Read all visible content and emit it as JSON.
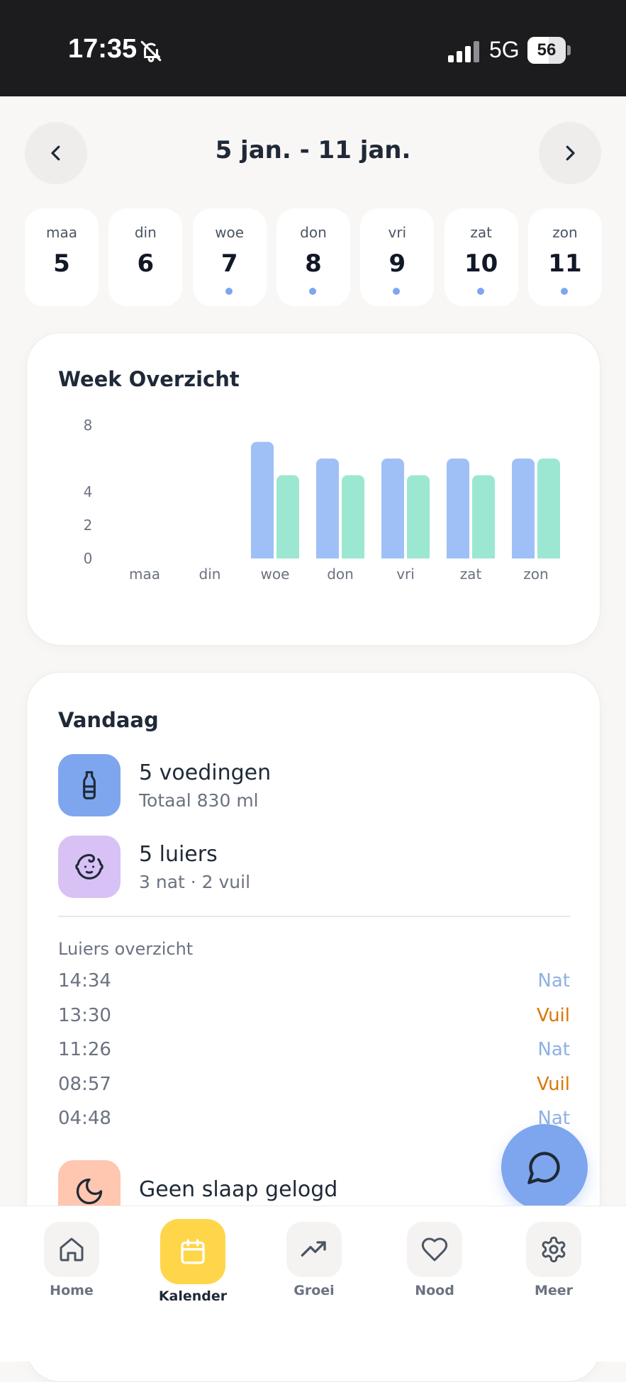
{
  "status_bar": {
    "time": "17:35",
    "network": "5G",
    "battery": "56",
    "battery_level": 0.56
  },
  "header": {
    "range_title": "5 jan. - 11 jan."
  },
  "days": [
    {
      "name": "maa",
      "number": "5",
      "has_entries": false
    },
    {
      "name": "din",
      "number": "6",
      "has_entries": false
    },
    {
      "name": "woe",
      "number": "7",
      "has_entries": true
    },
    {
      "name": "don",
      "number": "8",
      "has_entries": true
    },
    {
      "name": "vri",
      "number": "9",
      "has_entries": true
    },
    {
      "name": "zat",
      "number": "10",
      "has_entries": true
    },
    {
      "name": "zon",
      "number": "11",
      "has_entries": true
    }
  ],
  "week_overview": {
    "title": "Week Overzicht"
  },
  "chart_data": {
    "type": "bar",
    "categories": [
      "maa",
      "din",
      "woe",
      "don",
      "vri",
      "zat",
      "zon"
    ],
    "series": [
      {
        "values": [
          0,
          0,
          7,
          6,
          6,
          6,
          6
        ],
        "color": "#9fbff7"
      },
      {
        "values": [
          0,
          0,
          5,
          5,
          5,
          5,
          6
        ],
        "color": "#9ce7d2"
      }
    ],
    "yticks": [
      "8",
      "4",
      "2",
      "0"
    ],
    "ylim": [
      0,
      8
    ],
    "grid": false
  },
  "today": {
    "title": "Vandaag",
    "feedings": {
      "title": "5 voedingen",
      "subtitle": "Totaal 830 ml",
      "icon": "bottle-icon",
      "color": "#7ea6ee"
    },
    "diapers": {
      "title": "5 luiers",
      "subtitle": "3 nat · 2 vuil",
      "icon": "baby-face-icon",
      "color": "#d7c1f5"
    },
    "diaper_overview_label": "Luiers overzicht",
    "diaper_log": [
      {
        "time": "14:34",
        "type": "Nat"
      },
      {
        "time": "13:30",
        "type": "Vuil"
      },
      {
        "time": "11:26",
        "type": "Nat"
      },
      {
        "time": "08:57",
        "type": "Vuil"
      },
      {
        "time": "04:48",
        "type": "Nat"
      }
    ],
    "sleep": {
      "title": "Geen slaap gelogd",
      "icon": "moon-icon",
      "color": "#ffc6b0"
    }
  },
  "colors": {
    "nat": "#8db0e6",
    "vuil": "#d97706",
    "accent": "#7ea6ee",
    "active_tab": "#ffd54a"
  },
  "tabs": [
    {
      "label": "Home",
      "icon": "home-icon"
    },
    {
      "label": "Kalender",
      "icon": "calendar-icon",
      "active": true
    },
    {
      "label": "Groei",
      "icon": "trending-up-icon"
    },
    {
      "label": "Nood",
      "icon": "heart-icon"
    },
    {
      "label": "Meer",
      "icon": "gear-icon"
    }
  ]
}
